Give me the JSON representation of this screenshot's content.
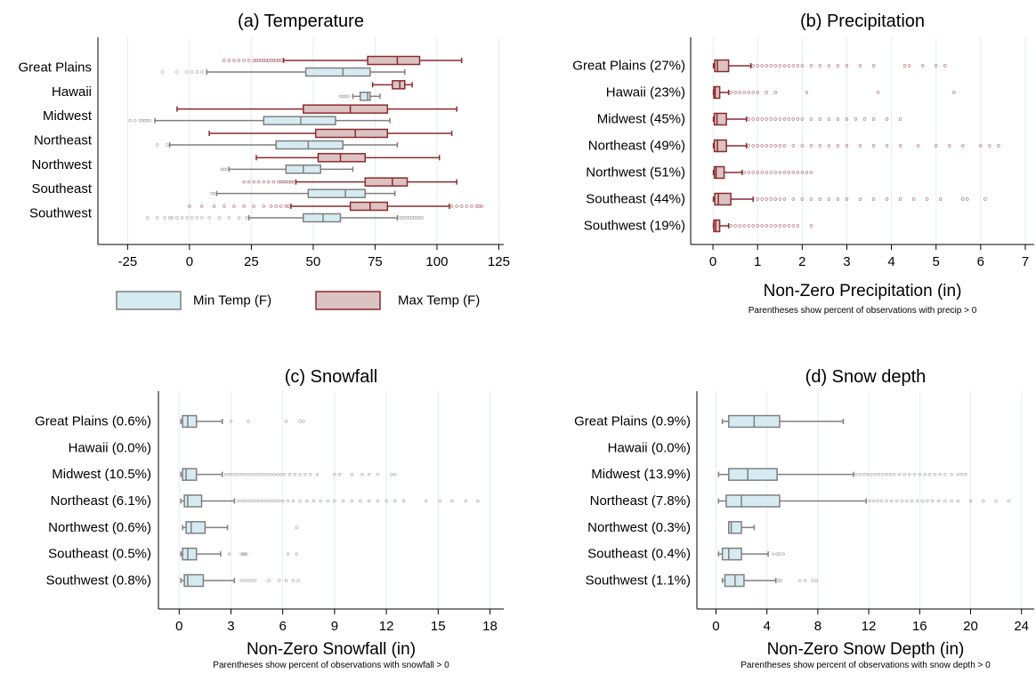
{
  "colors": {
    "min_fill": "#d6ebf1",
    "min_stroke": "#7f7f7f",
    "max_fill": "#dcc3c3",
    "max_stroke": "#8c2a2f",
    "grid": "#e4eeee",
    "axis": "#000000"
  },
  "chart_data": [
    {
      "type": "boxplot",
      "orientation": "horizontal",
      "title": "(a) Temperature",
      "xlabel": "",
      "ylabel": "",
      "categories": [
        "Great Plains",
        "Hawaii",
        "Midwest",
        "Northeast",
        "Northwest",
        "Southeast",
        "Southwest"
      ],
      "xlim": [
        -37,
        127
      ],
      "xticks": [
        -25,
        0,
        25,
        50,
        75,
        100,
        125
      ],
      "grid": true,
      "legend": {
        "position": "bottom",
        "entries": [
          "Min Temp (F)",
          "Max Temp (F)"
        ]
      },
      "series": [
        {
          "name": "Min Temp (F)",
          "color_key": "min",
          "boxes": [
            {
              "wlo": 7,
              "q1": 47,
              "med": 62,
              "q3": 73,
              "whi": 87,
              "out_lo": [
                -11,
                -5,
                -1,
                1,
                3,
                5
              ],
              "out_hi": []
            },
            {
              "wlo": 66,
              "q1": 69,
              "med": 72,
              "q3": 73,
              "whi": 77,
              "out_lo": [
                61,
                62,
                63,
                64
              ],
              "out_hi": []
            },
            {
              "wlo": -14,
              "q1": 30,
              "med": 45,
              "q3": 59,
              "whi": 81,
              "out_lo": [
                -24,
                -22,
                -20,
                -19,
                -18,
                -17,
                -16
              ],
              "out_hi": []
            },
            {
              "wlo": -8,
              "q1": 35,
              "med": 48,
              "q3": 62,
              "whi": 84,
              "out_lo": [
                -13,
                -9
              ],
              "out_hi": []
            },
            {
              "wlo": 16,
              "q1": 39,
              "med": 46,
              "q3": 53,
              "whi": 66,
              "out_lo": [
                13,
                14,
                15
              ],
              "out_hi": []
            },
            {
              "wlo": 11,
              "q1": 48,
              "med": 63,
              "q3": 71,
              "whi": 83,
              "out_lo": [
                9,
                10
              ],
              "out_hi": []
            },
            {
              "wlo": 24,
              "q1": 46,
              "med": 54,
              "q3": 61,
              "whi": 84,
              "out_lo": [
                -17,
                -13,
                -10,
                -8,
                -7,
                -5,
                -3,
                -1,
                1,
                3,
                5,
                8,
                12,
                16,
                20,
                23
              ],
              "out_hi": [
                85,
                86,
                87,
                88,
                89,
                90,
                91,
                92,
                93,
                94
              ]
            }
          ]
        },
        {
          "name": "Max Temp (F)",
          "color_key": "max",
          "boxes": [
            {
              "wlo": 38,
              "q1": 72,
              "med": 84,
              "q3": 93,
              "whi": 110,
              "out_lo": [
                14,
                16,
                18,
                20,
                22,
                24,
                26,
                27,
                28,
                29,
                30,
                31,
                32,
                33,
                34,
                35,
                36,
                37
              ],
              "out_hi": []
            },
            {
              "wlo": 74,
              "q1": 82,
              "med": 85,
              "q3": 87,
              "whi": 90,
              "out_lo": [],
              "out_hi": []
            },
            {
              "wlo": -5,
              "q1": 46,
              "med": 65,
              "q3": 80,
              "whi": 108,
              "out_lo": [],
              "out_hi": []
            },
            {
              "wlo": 8,
              "q1": 51,
              "med": 67,
              "q3": 80,
              "whi": 106,
              "out_lo": [],
              "out_hi": []
            },
            {
              "wlo": 27,
              "q1": 52,
              "med": 61,
              "q3": 71,
              "whi": 101,
              "out_lo": [],
              "out_hi": []
            },
            {
              "wlo": 43,
              "q1": 71,
              "med": 82,
              "q3": 88,
              "whi": 108,
              "out_lo": [
                22,
                24,
                26,
                28,
                30,
                32,
                34,
                36,
                37,
                38,
                39,
                40,
                41,
                42
              ],
              "out_hi": []
            },
            {
              "wlo": 41,
              "q1": 65,
              "med": 73,
              "q3": 80,
              "whi": 105,
              "out_lo": [
                0,
                5,
                10,
                14,
                18,
                22,
                26,
                30,
                33,
                35,
                37,
                39,
                40
              ],
              "out_hi": [
                106,
                108,
                110,
                112,
                114,
                116,
                117,
                118
              ]
            }
          ]
        }
      ]
    },
    {
      "type": "boxplot",
      "orientation": "horizontal",
      "title": "(b) Precipitation",
      "xlabel": "Non-Zero Precipitation (in)",
      "note": "Parentheses show percent of observations with precip > 0",
      "categories": [
        "Great Plains (27%)",
        "Hawaii (23%)",
        "Midwest (45%)",
        "Northeast (49%)",
        "Northwest (51%)",
        "Southeast (44%)",
        "Southwest (19%)"
      ],
      "xlim": [
        -0.5,
        7.2
      ],
      "xticks": [
        0,
        1,
        2,
        3,
        4,
        5,
        6,
        7
      ],
      "grid": true,
      "series": [
        {
          "name": "",
          "color_key": "max",
          "boxes": [
            {
              "wlo": 0.01,
              "q1": 0.04,
              "med": 0.1,
              "q3": 0.35,
              "whi": 0.85,
              "out_lo": [],
              "out_hi": [
                0.9,
                1.0,
                1.1,
                1.2,
                1.3,
                1.4,
                1.5,
                1.6,
                1.7,
                1.8,
                1.9,
                2.0,
                2.2,
                2.4,
                2.6,
                2.8,
                3.0,
                3.3,
                3.6,
                4.3,
                4.4,
                4.7,
                5.0,
                5.2
              ]
            },
            {
              "wlo": 0.01,
              "q1": 0.02,
              "med": 0.05,
              "q3": 0.15,
              "whi": 0.35,
              "out_lo": [],
              "out_hi": [
                0.4,
                0.5,
                0.6,
                0.7,
                0.8,
                0.9,
                1.0,
                1.2,
                1.4,
                2.1,
                3.7,
                5.4
              ]
            },
            {
              "wlo": 0.01,
              "q1": 0.03,
              "med": 0.09,
              "q3": 0.3,
              "whi": 0.75,
              "out_lo": [],
              "out_hi": [
                0.8,
                0.9,
                1.0,
                1.1,
                1.2,
                1.3,
                1.4,
                1.5,
                1.6,
                1.7,
                1.8,
                1.9,
                2.0,
                2.2,
                2.4,
                2.6,
                2.8,
                3.0,
                3.2,
                3.4,
                3.6,
                3.9,
                4.2
              ]
            },
            {
              "wlo": 0.01,
              "q1": 0.03,
              "med": 0.1,
              "q3": 0.3,
              "whi": 0.75,
              "out_lo": [],
              "out_hi": [
                0.8,
                0.9,
                1.0,
                1.1,
                1.2,
                1.3,
                1.4,
                1.5,
                1.6,
                1.8,
                2.0,
                2.2,
                2.4,
                2.6,
                2.8,
                3.0,
                3.3,
                3.6,
                3.9,
                4.2,
                4.6,
                5.0,
                5.3,
                5.6,
                6.0,
                6.2,
                6.4
              ]
            },
            {
              "wlo": 0.01,
              "q1": 0.03,
              "med": 0.07,
              "q3": 0.25,
              "whi": 0.65,
              "out_lo": [],
              "out_hi": [
                0.7,
                0.8,
                0.9,
                1.0,
                1.1,
                1.2,
                1.3,
                1.4,
                1.5,
                1.6,
                1.7,
                1.8,
                1.9,
                2.0,
                2.1,
                2.2
              ]
            },
            {
              "wlo": 0.01,
              "q1": 0.04,
              "med": 0.12,
              "q3": 0.4,
              "whi": 0.9,
              "out_lo": [],
              "out_hi": [
                1.0,
                1.1,
                1.2,
                1.3,
                1.4,
                1.5,
                1.6,
                1.8,
                2.0,
                2.2,
                2.4,
                2.6,
                2.8,
                3.0,
                3.3,
                3.6,
                3.9,
                4.2,
                4.5,
                4.8,
                5.1,
                5.6,
                5.7,
                6.1
              ]
            },
            {
              "wlo": 0.01,
              "q1": 0.02,
              "med": 0.06,
              "q3": 0.15,
              "whi": 0.35,
              "out_lo": [],
              "out_hi": [
                0.4,
                0.5,
                0.6,
                0.7,
                0.8,
                0.9,
                1.0,
                1.1,
                1.2,
                1.3,
                1.4,
                1.5,
                1.6,
                1.7,
                1.8,
                1.9,
                2.2
              ]
            }
          ]
        }
      ]
    },
    {
      "type": "boxplot",
      "orientation": "horizontal",
      "title": "(c) Snowfall",
      "xlabel": "Non-Zero Snowfall (in)",
      "note": "Parentheses show percent of observations with snowfall > 0",
      "categories": [
        "Great Plains (0.6%)",
        "Hawaii (0.0%)",
        "Midwest (10.5%)",
        "Northeast (6.1%)",
        "Northwest (0.6%)",
        "Southeast (0.5%)",
        "Southwest (0.8%)"
      ],
      "xlim": [
        -1.2,
        18.8
      ],
      "xticks": [
        0,
        3,
        6,
        9,
        12,
        15,
        18
      ],
      "grid": true,
      "series": [
        {
          "name": "",
          "color_key": "min",
          "boxes": [
            {
              "wlo": 0.1,
              "q1": 0.2,
              "med": 0.5,
              "q3": 1.0,
              "whi": 2.5,
              "out_lo": [],
              "out_hi": [
                3.0,
                4.0,
                6.2,
                7.0,
                7.2
              ]
            },
            null,
            {
              "wlo": 0.1,
              "q1": 0.2,
              "med": 0.4,
              "q3": 1.0,
              "whi": 2.5,
              "out_lo": [],
              "out_hi": [
                2.7,
                2.9,
                3.1,
                3.3,
                3.5,
                3.7,
                3.9,
                4.1,
                4.3,
                4.5,
                4.7,
                4.9,
                5.1,
                5.3,
                5.5,
                5.7,
                5.9,
                6.1,
                6.4,
                6.7,
                7.0,
                7.3,
                7.6,
                8.0,
                9.0,
                9.3,
                10.0,
                10.6,
                11.0,
                11.5,
                12.3,
                12.5
              ]
            },
            {
              "wlo": 0.1,
              "q1": 0.3,
              "med": 0.5,
              "q3": 1.3,
              "whi": 3.2,
              "out_lo": [],
              "out_hi": [
                3.4,
                3.6,
                3.8,
                4.0,
                4.2,
                4.4,
                4.6,
                4.8,
                5.0,
                5.2,
                5.4,
                5.6,
                5.8,
                6.0,
                6.3,
                6.6,
                7.0,
                7.4,
                7.8,
                8.2,
                8.6,
                9.0,
                9.5,
                10.0,
                10.5,
                11.0,
                11.5,
                12.0,
                12.5,
                13.0,
                14.3,
                15.1,
                15.8,
                16.6,
                17.3
              ]
            },
            {
              "wlo": 0.2,
              "q1": 0.4,
              "med": 0.7,
              "q3": 1.5,
              "whi": 2.8,
              "out_lo": [],
              "out_hi": [
                6.8
              ]
            },
            {
              "wlo": 0.1,
              "q1": 0.2,
              "med": 0.5,
              "q3": 1.0,
              "whi": 2.4,
              "out_lo": [],
              "out_hi": [
                2.9,
                3.6,
                3.7,
                3.8,
                3.9,
                6.3,
                6.8
              ]
            },
            {
              "wlo": 0.1,
              "q1": 0.3,
              "med": 0.5,
              "q3": 1.4,
              "whi": 3.2,
              "out_lo": [],
              "out_hi": [
                3.6,
                3.8,
                4.0,
                4.2,
                4.4,
                5.2,
                5.8,
                6.2,
                6.6,
                6.9
              ]
            }
          ]
        }
      ]
    },
    {
      "type": "boxplot",
      "orientation": "horizontal",
      "title": "(d) Snow depth",
      "xlabel": "Non-Zero Snow Depth (in)",
      "note": "Parentheses show percent of observations with snow depth > 0",
      "categories": [
        "Great Plains (0.9%)",
        "Hawaii (0.0%)",
        "Midwest (13.9%)",
        "Northeast (7.8%)",
        "Northwest (0.3%)",
        "Southeast (0.4%)",
        "Southwest (1.1%)"
      ],
      "xlim": [
        -1.5,
        25.0
      ],
      "xticks": [
        0,
        4,
        8,
        12,
        16,
        20,
        24
      ],
      "grid": true,
      "series": [
        {
          "name": "",
          "color_key": "min",
          "boxes": [
            {
              "wlo": 0.5,
              "q1": 1.0,
              "med": 3.0,
              "q3": 5.0,
              "whi": 10.0,
              "out_lo": [],
              "out_hi": []
            },
            null,
            {
              "wlo": 0.2,
              "q1": 1.0,
              "med": 2.5,
              "q3": 4.8,
              "whi": 10.8,
              "out_lo": [],
              "out_hi": [
                11.0,
                11.3,
                11.6,
                11.9,
                12.2,
                12.5,
                12.8,
                13.1,
                13.4,
                13.7,
                14.0,
                14.4,
                14.8,
                15.2,
                15.6,
                16.0,
                16.4,
                16.8,
                17.2,
                17.6,
                18.0,
                18.5,
                19.0,
                19.3,
                19.6
              ]
            },
            {
              "wlo": 0.2,
              "q1": 0.8,
              "med": 2.0,
              "q3": 5.0,
              "whi": 11.8,
              "out_lo": [],
              "out_hi": [
                12.1,
                12.4,
                12.7,
                13.0,
                13.4,
                13.8,
                14.2,
                14.6,
                15.0,
                15.4,
                15.8,
                16.2,
                16.6,
                17.0,
                17.5,
                18.0,
                18.5,
                19.0,
                20.0,
                21.0,
                22.0,
                23.0
              ]
            },
            {
              "wlo": 1.0,
              "q1": 1.0,
              "med": 1.2,
              "q3": 2.0,
              "whi": 3.0,
              "out_lo": [],
              "out_hi": []
            },
            {
              "wlo": 0.2,
              "q1": 0.5,
              "med": 1.0,
              "q3": 2.0,
              "whi": 4.1,
              "out_lo": [],
              "out_hi": [
                4.5,
                4.8,
                5.0,
                5.3
              ]
            },
            {
              "wlo": 0.5,
              "q1": 0.7,
              "med": 1.5,
              "q3": 2.2,
              "whi": 4.7,
              "out_lo": [],
              "out_hi": [
                4.9,
                5.1,
                6.6,
                7.0,
                7.6,
                7.9
              ]
            }
          ]
        }
      ]
    }
  ]
}
